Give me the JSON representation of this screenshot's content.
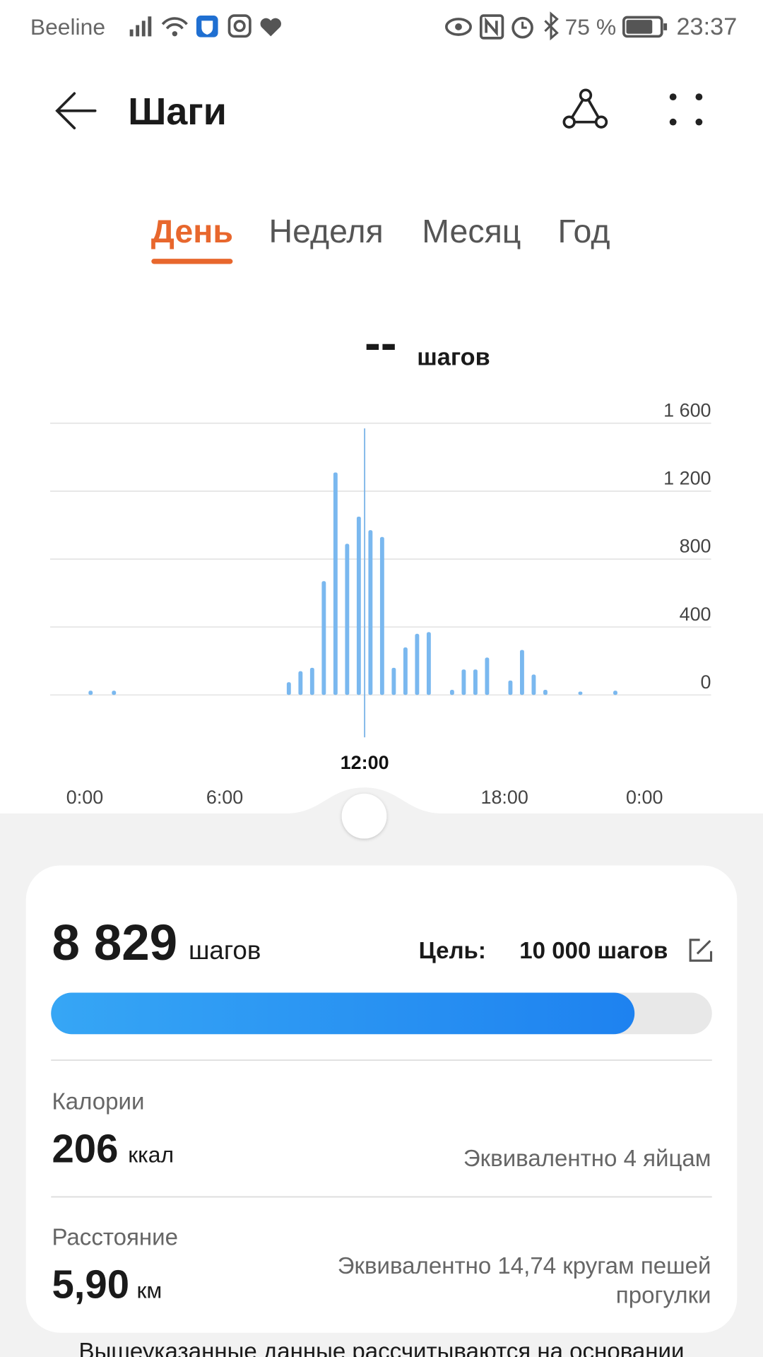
{
  "status_bar": {
    "carrier": "Beeline",
    "battery": "75 %",
    "time": "23:37"
  },
  "header": {
    "title": "Шаги"
  },
  "tabs": [
    "День",
    "Неделя",
    "Месяц",
    "Год"
  ],
  "active_tab": 0,
  "chart_data": {
    "type": "bar",
    "headline_value": "--",
    "headline_unit": "шагов",
    "x": [
      0,
      1,
      8.5,
      9,
      9.5,
      10,
      10.5,
      11,
      11.5,
      12,
      12.5,
      13,
      13.5,
      14,
      14.5,
      15.5,
      16,
      16.5,
      17,
      18,
      18.5,
      19,
      19.5,
      21,
      22.5
    ],
    "values": [
      25,
      25,
      75,
      140,
      160,
      670,
      1310,
      890,
      1050,
      970,
      930,
      160,
      280,
      360,
      370,
      30,
      150,
      150,
      220,
      85,
      265,
      120,
      30,
      20,
      25
    ],
    "bin_width": 0.5,
    "color": "#7ab8ef",
    "xlim": [
      -0.25,
      24.25
    ],
    "xticks": [
      {
        "value": 0,
        "label": "0:00"
      },
      {
        "value": 6,
        "label": "6:00"
      },
      {
        "value": 12,
        "label": "12:00"
      },
      {
        "value": 18,
        "label": "18:00"
      },
      {
        "value": 24,
        "label": "0:00"
      }
    ],
    "selected_xtick": 2,
    "ylim": [
      0,
      1600
    ],
    "yticks": [
      0,
      400,
      800,
      {
        "value": 1200,
        "label": "1 200"
      },
      {
        "value": 1600,
        "label": "1 600"
      }
    ],
    "grid": true
  },
  "summary": {
    "steps": {
      "value": 8829,
      "label": "8 829"
    },
    "steps_unit": "шагов",
    "goal_label": "Цель:",
    "goal": {
      "value": 10000,
      "label": "10 000 шагов"
    },
    "calories_label": "Калории",
    "calories": "206",
    "calories_unit": "ккал",
    "calories_note": "Эквивалентно 4 яйцам",
    "distance_label": "Расстояние",
    "distance": "5,90",
    "distance_unit": "км",
    "distance_note": [
      "Эквивалентно 14,74 кругам пешей",
      "прогулки"
    ],
    "footer": "Вышеуказанные данные рассчитываются на основании"
  }
}
